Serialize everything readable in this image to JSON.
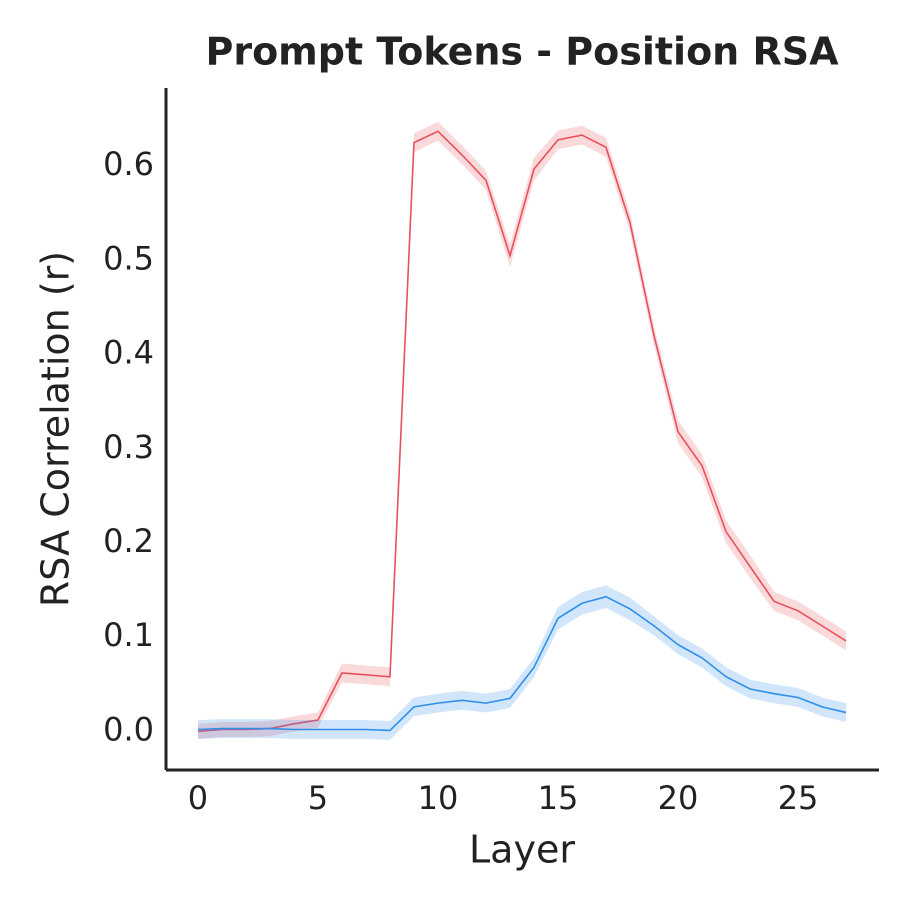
{
  "chart_data": {
    "type": "line",
    "title": "Prompt Tokens - Position RSA",
    "x_label": "Layer",
    "y_label": "RSA Correlation (r)",
    "x": [
      0,
      1,
      2,
      3,
      4,
      5,
      6,
      7,
      8,
      9,
      10,
      11,
      12,
      13,
      14,
      15,
      16,
      17,
      18,
      19,
      20,
      21,
      22,
      23,
      24,
      25,
      26,
      27
    ],
    "series": [
      {
        "color": "#e8505b",
        "values": [
          0.0,
          0.002,
          0.002,
          0.003,
          0.008,
          0.012,
          0.062,
          0.06,
          0.058,
          0.625,
          0.637,
          0.612,
          0.585,
          0.505,
          0.597,
          0.628,
          0.633,
          0.62,
          0.54,
          0.42,
          0.318,
          0.282,
          0.212,
          0.175,
          0.138,
          0.128,
          0.112,
          0.096
        ],
        "error": [
          0.008,
          0.008,
          0.008,
          0.008,
          0.008,
          0.008,
          0.01,
          0.01,
          0.01,
          0.01,
          0.01,
          0.01,
          0.01,
          0.012,
          0.012,
          0.01,
          0.01,
          0.01,
          0.01,
          0.01,
          0.012,
          0.012,
          0.012,
          0.012,
          0.01,
          0.01,
          0.01,
          0.01
        ]
      },
      {
        "color": "#2f8fe8",
        "values": [
          0.002,
          0.003,
          0.003,
          0.003,
          0.002,
          0.002,
          0.002,
          0.002,
          0.001,
          0.026,
          0.03,
          0.033,
          0.03,
          0.035,
          0.068,
          0.12,
          0.136,
          0.143,
          0.13,
          0.112,
          0.092,
          0.078,
          0.058,
          0.045,
          0.04,
          0.036,
          0.026,
          0.02
        ],
        "error": [
          0.01,
          0.01,
          0.01,
          0.01,
          0.01,
          0.01,
          0.01,
          0.01,
          0.01,
          0.01,
          0.01,
          0.01,
          0.01,
          0.01,
          0.01,
          0.012,
          0.012,
          0.012,
          0.012,
          0.01,
          0.01,
          0.01,
          0.01,
          0.01,
          0.01,
          0.01,
          0.01,
          0.01
        ]
      }
    ],
    "xlim": [
      -1.33,
      28.33
    ],
    "xticks": [
      0,
      5,
      10,
      15,
      20,
      25
    ],
    "ylim": [
      -0.041,
      0.683
    ],
    "yticks": [
      {
        "value": 0,
        "label": "0.0"
      },
      0.1,
      0.2,
      0.3,
      0.4,
      0.5,
      0.6
    ],
    "grid": false
  }
}
